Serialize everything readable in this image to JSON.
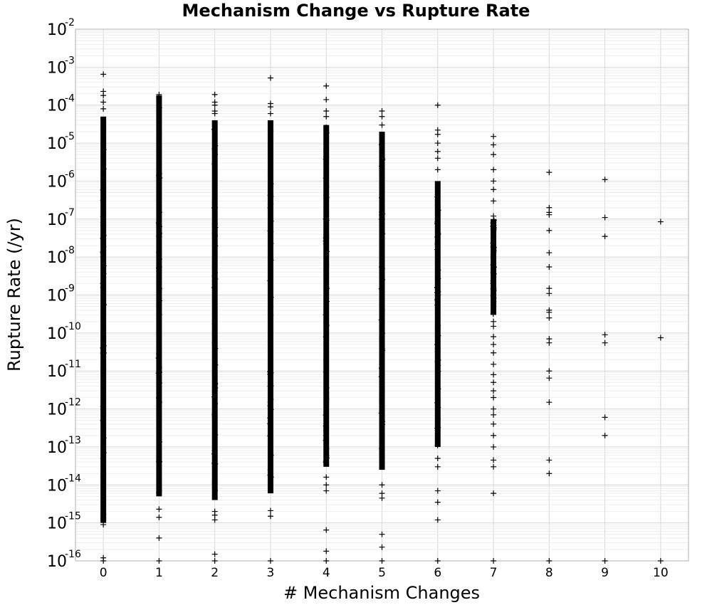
{
  "chart_data": {
    "type": "scatter",
    "title": "Mechanism Change vs Rupture Rate",
    "xlabel": "# Mechanism Changes",
    "ylabel": "Rupture Rate (/yr)",
    "xlim": [
      -0.5,
      10.5
    ],
    "ylim": [
      1e-16,
      0.01
    ],
    "y_scale": "log",
    "grid": true,
    "marker": "plus",
    "x_ticks": [
      0,
      1,
      2,
      3,
      4,
      5,
      6,
      7,
      8,
      9,
      10
    ],
    "x_tick_labels": [
      "0",
      "1",
      "2",
      "3",
      "4",
      "5",
      "6",
      "7",
      "8",
      "9",
      "10"
    ],
    "y_ticks": [
      {
        "base": "10",
        "exp": "-16",
        "value": 1e-16
      },
      {
        "base": "10",
        "exp": "-15",
        "value": 1e-15
      },
      {
        "base": "10",
        "exp": "-14",
        "value": 1e-14
      },
      {
        "base": "10",
        "exp": "-13",
        "value": 1e-13
      },
      {
        "base": "10",
        "exp": "-12",
        "value": 1e-12
      },
      {
        "base": "10",
        "exp": "-11",
        "value": 1e-11
      },
      {
        "base": "10",
        "exp": "-10",
        "value": 1e-10
      },
      {
        "base": "10",
        "exp": "-9",
        "value": 1e-09
      },
      {
        "base": "10",
        "exp": "-8",
        "value": 1e-08
      },
      {
        "base": "10",
        "exp": "-7",
        "value": 1e-07
      },
      {
        "base": "10",
        "exp": "-6",
        "value": 1e-06
      },
      {
        "base": "10",
        "exp": "-5",
        "value": 1e-05
      },
      {
        "base": "10",
        "exp": "-4",
        "value": 0.0001
      },
      {
        "base": "10",
        "exp": "-3",
        "value": 0.001
      },
      {
        "base": "10",
        "exp": "-2",
        "value": 0.01
      }
    ],
    "columns": [
      {
        "x": 0,
        "dense_range": [
          1e-15,
          5e-05
        ],
        "points": [
          0.00065,
          0.00023,
          0.00018,
          0.00012,
          8e-05,
          1.2e-15,
          9e-16,
          1.2e-16,
          1e-16
        ]
      },
      {
        "x": 1,
        "dense_range": [
          5e-15,
          0.00018
        ],
        "points": [
          0.00019,
          0.00016,
          2.3e-15,
          1.4e-15,
          4e-16,
          1e-16
        ]
      },
      {
        "x": 2,
        "dense_range": [
          4e-15,
          4e-05
        ],
        "points": [
          0.00019,
          0.00012,
          0.0001,
          7e-05,
          6e-05,
          2e-15,
          1.6e-15,
          1.2e-15,
          1.5e-16,
          1e-16
        ]
      },
      {
        "x": 3,
        "dense_range": [
          6e-15,
          4e-05
        ],
        "points": [
          0.00052,
          0.00011,
          9e-05,
          6e-05,
          2.1e-15,
          1.5e-15,
          1e-16
        ]
      },
      {
        "x": 4,
        "dense_range": [
          3e-14,
          3e-05
        ],
        "points": [
          0.00032,
          0.00014,
          7e-05,
          5e-05,
          1.6e-14,
          1e-14,
          7e-15,
          6.5e-16,
          1.8e-16,
          1e-16
        ]
      },
      {
        "x": 5,
        "dense_range": [
          2.5e-14,
          2e-05
        ],
        "points": [
          7e-05,
          5e-05,
          3e-05,
          1e-14,
          6e-15,
          4.5e-15,
          5e-16,
          2.3e-16,
          1e-16
        ]
      },
      {
        "x": 6,
        "dense_range": [
          1e-13,
          1e-06
        ],
        "points": [
          0.0001,
          2.2e-05,
          1.7e-05,
          1e-05,
          6e-06,
          4e-06,
          2e-06,
          5e-14,
          3e-14,
          7e-15,
          3.5e-15,
          1.2e-15,
          1e-16
        ]
      },
      {
        "x": 7,
        "dense_range": [
          3e-10,
          1e-07
        ],
        "points": [
          1.5e-05,
          9e-06,
          5e-06,
          2e-06,
          1e-06,
          6e-07,
          3e-07,
          1.2e-07,
          5e-08,
          2e-08,
          1e-08,
          5e-09,
          2e-09,
          1e-09,
          4e-10,
          2e-10,
          1.5e-10,
          8e-11,
          5e-11,
          3e-11,
          1.5e-11,
          8e-12,
          5e-12,
          3e-12,
          2e-12,
          1e-12,
          7e-13,
          4e-13,
          2e-13,
          1e-13,
          4.5e-14,
          3e-14,
          6e-15,
          1e-16
        ]
      },
      {
        "x": 8,
        "points": [
          1.7e-06,
          2e-07,
          1.5e-07,
          1.3e-07,
          5e-08,
          1.3e-08,
          5.5e-09,
          1.5e-09,
          1.1e-09,
          4e-10,
          3.5e-10,
          2.5e-10,
          7e-11,
          5.5e-11,
          1e-11,
          6.5e-12,
          1.5e-12,
          4.5e-14,
          2e-14,
          1e-16
        ]
      },
      {
        "x": 9,
        "points": [
          1.1e-06,
          1.1e-07,
          3.5e-08,
          9e-11,
          5.5e-11,
          6e-13,
          2e-13,
          1e-16
        ]
      },
      {
        "x": 10,
        "points": [
          8.5e-08,
          7.5e-11,
          1e-16
        ]
      }
    ],
    "colors": {
      "marker": "#000000",
      "grid_major": "#d6d6d6",
      "grid_minor": "#eeeeee",
      "frame": "#b0b0b0"
    }
  }
}
